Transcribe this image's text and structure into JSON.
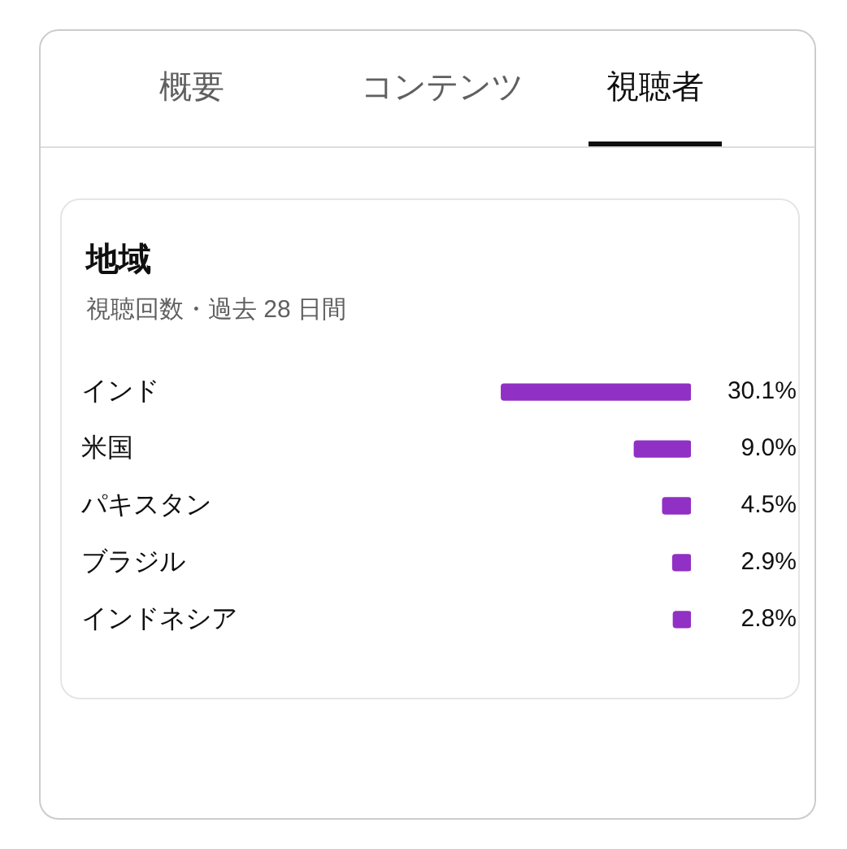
{
  "chart_data": {
    "type": "bar",
    "orientation": "horizontal",
    "title": "地域",
    "subtitle": "視聴回数・過去 28 日間",
    "annotations": [
      "概要",
      "コンテンツ",
      "視聴者"
    ],
    "categories": [
      "インド",
      "米国",
      "パキスタン",
      "ブラジル",
      "インドネシア"
    ],
    "values": [
      30.1,
      9.0,
      4.5,
      2.9,
      2.8
    ],
    "value_labels": [
      "30.1%",
      "9.0%",
      "4.5%",
      "2.9%",
      "2.8%"
    ],
    "color": "#9130c4"
  }
}
